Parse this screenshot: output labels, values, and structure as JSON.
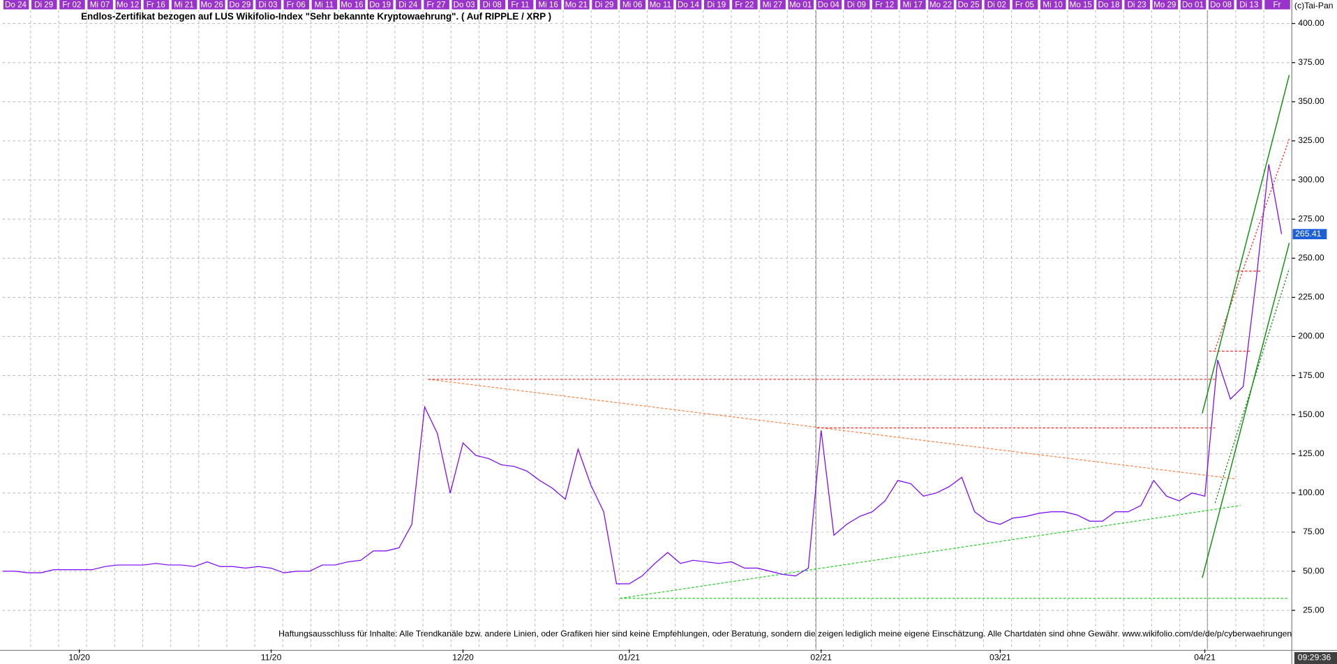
{
  "chart_data": {
    "type": "line",
    "title": "Endlos-Zertifikat bezogen auf LUS Wikifolio-Index \"Sehr bekannte Kryptowaehrung\". ( Auf RIPPLE / XRP )",
    "disclaimer": "Haftungsausschluss für Inhalte: Alle Trendkanäle bzw. andere Linien, oder Grafiken hier sind keine Empfehlungen, oder Beratung, sondern die zeigen lediglich meine eigene Einschätzung. Alle Chartdaten sind ohne Gewähr.  www.wikifolio.com/de/de/p/cyberwaehrungen",
    "copyright": "(c)Tai-Pan",
    "timestamp": "09:29:36",
    "top_labels": [
      "Do 24",
      "Di 29",
      "Fr 02",
      "Mi 07",
      "Mo 12",
      "Fr 16",
      "Mi 21",
      "Mo 26",
      "Do 29",
      "Di 03",
      "Fr 06",
      "Mi 11",
      "Mo 16",
      "Do 19",
      "Di 24",
      "Fr 27",
      "Do 03",
      "Di 08",
      "Fr 11",
      "Mi 16",
      "Mo 21",
      "Di 29",
      "Mi 06",
      "Mo 11",
      "Do 14",
      "Di 19",
      "Fr 22",
      "Mi 27",
      "Mo 01",
      "Do 04",
      "Di 09",
      "Fr 12",
      "Mi 17",
      "Mo 22",
      "Do 25",
      "Di 02",
      "Fr 05",
      "Mi 10",
      "Mo 15",
      "Do 18",
      "Di 23",
      "Mo 29",
      "Do 01",
      "Do 08",
      "Di 13",
      "Fr"
    ],
    "categories": [
      null,
      null,
      null,
      null,
      null,
      null,
      "10/20",
      null,
      null,
      null,
      null,
      null,
      null,
      null,
      null,
      null,
      null,
      null,
      null,
      null,
      null,
      "11/20",
      null,
      null,
      null,
      null,
      null,
      null,
      null,
      null,
      null,
      null,
      null,
      null,
      null,
      null,
      "12/20",
      null,
      null,
      null,
      null,
      null,
      null,
      null,
      null,
      null,
      null,
      null,
      null,
      "01/21",
      null,
      null,
      null,
      null,
      null,
      null,
      null,
      null,
      null,
      null,
      null,
      null,
      null,
      null,
      "02/21",
      null,
      null,
      null,
      null,
      null,
      null,
      null,
      null,
      null,
      null,
      null,
      null,
      null,
      "03/21",
      null,
      null,
      null,
      null,
      null,
      null,
      null,
      null,
      null,
      null,
      null,
      null,
      null,
      null,
      null,
      "04/21",
      null,
      null,
      null,
      null,
      null,
      null
    ],
    "values": [
      50,
      50,
      49,
      49,
      51,
      51,
      51,
      51,
      53,
      54,
      54,
      54,
      55,
      54,
      54,
      53,
      56,
      53,
      53,
      52,
      53,
      52,
      49,
      50,
      50,
      54,
      54,
      56,
      57,
      63,
      63,
      65,
      80,
      155,
      138,
      100,
      132,
      124,
      122,
      118,
      117,
      114,
      108,
      103,
      96,
      128,
      105,
      88,
      42,
      42,
      47,
      55,
      62,
      55,
      57,
      56,
      55,
      56,
      52,
      52,
      50,
      48,
      47,
      52,
      140,
      73,
      80,
      85,
      88,
      95,
      108,
      106,
      98,
      100,
      104,
      110,
      88,
      82,
      80,
      84,
      85,
      87,
      88,
      88,
      86,
      82,
      82,
      88,
      88,
      92,
      108,
      98,
      95,
      100,
      98,
      185,
      160,
      168,
      235,
      310,
      265.41
    ],
    "color": "#7a00ff",
    "ylim": [
      0,
      415
    ],
    "yticks": [
      {
        "value": 25,
        "label": "25.00"
      },
      {
        "value": 50,
        "label": "50.00"
      },
      {
        "value": 75,
        "label": "75.00"
      },
      {
        "value": 100,
        "label": "100.00"
      },
      {
        "value": 125,
        "label": "125.00"
      },
      {
        "value": 150,
        "label": "150.00"
      },
      {
        "value": 175,
        "label": "175.00"
      },
      {
        "value": 200,
        "label": "200.00"
      },
      {
        "value": 225,
        "label": "225.00"
      },
      {
        "value": 250,
        "label": "250.00"
      },
      {
        "value": 275,
        "label": "275.00"
      },
      {
        "value": 300,
        "label": "300.00"
      },
      {
        "value": 325,
        "label": "325.00"
      },
      {
        "value": 350,
        "label": "350.00"
      },
      {
        "value": 375,
        "label": "375.00"
      },
      {
        "value": 400,
        "label": "400.00"
      }
    ],
    "grid": true
  }
}
